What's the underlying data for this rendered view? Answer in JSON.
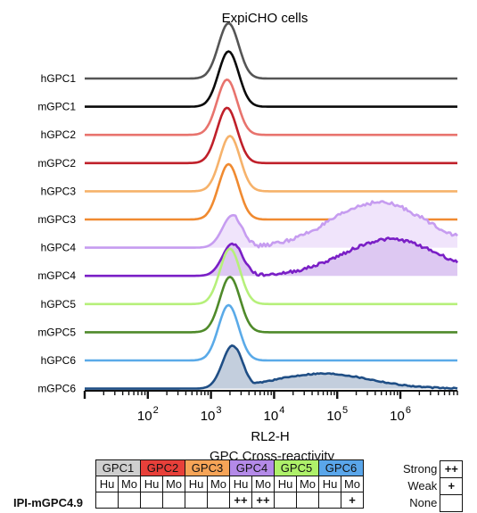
{
  "chart_data": {
    "type": "histogram",
    "title": "ExpiCHO cells",
    "xlabel": "RL2-H",
    "xscale": "log",
    "xlim": [
      10,
      8000000
    ],
    "x_tick_labels": [
      {
        "value": 100,
        "label": "10",
        "exp": "2"
      },
      {
        "value": 1000,
        "label": "10",
        "exp": "3"
      },
      {
        "value": 10000,
        "label": "10",
        "exp": "4"
      },
      {
        "value": 100000,
        "label": "10",
        "exp": "5"
      },
      {
        "value": 1000000,
        "label": "10",
        "exp": "6"
      }
    ],
    "series": [
      {
        "name": "hGPC1",
        "color": "#555555",
        "filled": false,
        "peak": 1900,
        "secondary": null
      },
      {
        "name": "mGPC1",
        "color": "#0a0a0a",
        "filled": false,
        "peak": 1900,
        "secondary": null
      },
      {
        "name": "hGPC2",
        "color": "#e8736d",
        "filled": false,
        "peak": 1800,
        "secondary": null
      },
      {
        "name": "mGPC2",
        "color": "#c0202a",
        "filled": false,
        "peak": 1800,
        "secondary": null
      },
      {
        "name": "hGPC3",
        "color": "#f6b26b",
        "filled": false,
        "peak": 2000,
        "secondary": null
      },
      {
        "name": "mGPC3",
        "color": "#f08a30",
        "filled": false,
        "peak": 1900,
        "secondary": null
      },
      {
        "name": "hGPC4",
        "color": "#c69cf0",
        "filled": true,
        "fill": "#f0e4fb",
        "peak": 2200,
        "secondary": {
          "center": 450000,
          "rel_height": 1.05
        }
      },
      {
        "name": "mGPC4",
        "color": "#7a1fc6",
        "filled": true,
        "fill": "#ddc8f2",
        "peak": 2200,
        "secondary": {
          "center": 700000,
          "rel_height": 0.85
        }
      },
      {
        "name": "hGPC5",
        "color": "#b6f07a",
        "filled": false,
        "peak": 2000,
        "secondary": null
      },
      {
        "name": "mGPC5",
        "color": "#4f8a2a",
        "filled": false,
        "peak": 2000,
        "secondary": null
      },
      {
        "name": "hGPC6",
        "color": "#5aaae8",
        "filled": false,
        "peak": 1900,
        "secondary": null
      },
      {
        "name": "mGPC6",
        "color": "#1f4e85",
        "filled": true,
        "fill": "#c3cedd",
        "peak": 2200,
        "secondary": {
          "center": 60000,
          "rel_height": 0.35
        }
      }
    ]
  },
  "table": {
    "title": "GPC Cross-reactivity",
    "groups": [
      {
        "label": "GPC1",
        "color": "#cfcfcf"
      },
      {
        "label": "GPC2",
        "color": "#e8403a"
      },
      {
        "label": "GPC3",
        "color": "#f6a457"
      },
      {
        "label": "GPC4",
        "color": "#b48ae8"
      },
      {
        "label": "GPC5",
        "color": "#aef06a"
      },
      {
        "label": "GPC6",
        "color": "#5aa6ea"
      }
    ],
    "subcols": [
      "Hu",
      "Mo"
    ],
    "rows": [
      {
        "label": "IPI-mGPC4.9",
        "cells": [
          "",
          "",
          "",
          "",
          "",
          "",
          "++",
          "++",
          "",
          "",
          "",
          "+"
        ]
      }
    ],
    "legend": [
      {
        "name": "Strong",
        "symbol": "++"
      },
      {
        "name": "Weak",
        "symbol": "+"
      },
      {
        "name": "None",
        "symbol": ""
      }
    ]
  }
}
